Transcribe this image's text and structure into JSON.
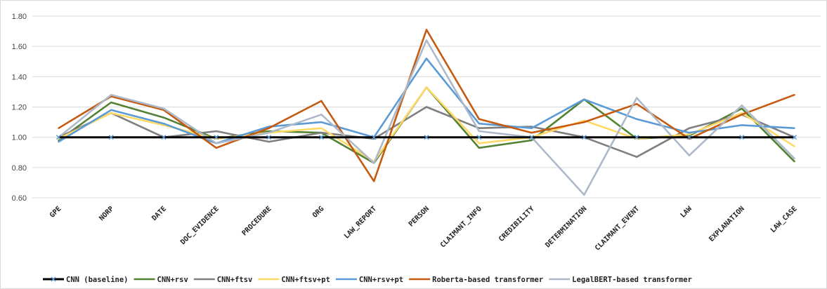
{
  "chart_data": {
    "type": "line",
    "title": "",
    "xlabel": "",
    "ylabel": "",
    "ylim": [
      0.6,
      1.8
    ],
    "ytick_step": 0.2,
    "grid": "horizontal",
    "legend_position": "bottom",
    "categories": [
      "GPE",
      "NORP",
      "DATE",
      "DOC_EVIDENCE",
      "PROCEDURE",
      "ORG",
      "LAW_REPORT",
      "PERSON",
      "CLAIMANT_INFO",
      "CREDIBILITY",
      "DETERMINATION",
      "CLAIMANT_EVENT",
      "LAW",
      "EXPLANATION",
      "LAW_CASE"
    ],
    "series": [
      {
        "name": "CNN (baseline)",
        "color": "#000000",
        "marker": "x",
        "values": [
          1.0,
          1.0,
          1.0,
          1.0,
          1.0,
          1.0,
          1.0,
          1.0,
          1.0,
          1.0,
          1.0,
          1.0,
          1.0,
          1.0,
          1.0
        ]
      },
      {
        "name": "CNN+rsv",
        "color": "#548235",
        "values": [
          0.98,
          1.23,
          1.13,
          0.99,
          1.04,
          1.03,
          0.83,
          1.33,
          0.93,
          0.98,
          1.25,
          0.99,
          1.01,
          1.19,
          0.84
        ]
      },
      {
        "name": "CNN+ftsv",
        "color": "#7f7f7f",
        "values": [
          1.0,
          1.16,
          1.0,
          1.04,
          0.97,
          1.03,
          0.99,
          1.2,
          1.06,
          1.07,
          1.0,
          0.87,
          1.06,
          1.15,
          1.0
        ]
      },
      {
        "name": "CNN+ftsv+pt",
        "color": "#ffd966",
        "values": [
          0.99,
          1.16,
          1.08,
          0.99,
          1.03,
          1.06,
          0.84,
          1.33,
          0.96,
          1.0,
          1.11,
          0.99,
          1.02,
          1.16,
          0.94
        ]
      },
      {
        "name": "CNN+rsv+pt",
        "color": "#5b9bd5",
        "values": [
          0.97,
          1.18,
          1.09,
          0.96,
          1.07,
          1.1,
          1.0,
          1.52,
          1.09,
          1.06,
          1.25,
          1.12,
          1.03,
          1.08,
          1.06
        ]
      },
      {
        "name": "Roberta-based transformer",
        "color": "#c55a11",
        "values": [
          1.06,
          1.27,
          1.18,
          0.93,
          1.06,
          1.24,
          0.71,
          1.71,
          1.12,
          1.03,
          1.1,
          1.22,
          0.99,
          1.15,
          1.28
        ]
      },
      {
        "name": "LegalBERT-based transformer",
        "color": "#adb9ca",
        "values": [
          1.0,
          1.28,
          1.19,
          0.96,
          1.03,
          1.15,
          0.83,
          1.64,
          1.04,
          1.0,
          0.62,
          1.26,
          0.88,
          1.21,
          0.86
        ]
      }
    ]
  }
}
